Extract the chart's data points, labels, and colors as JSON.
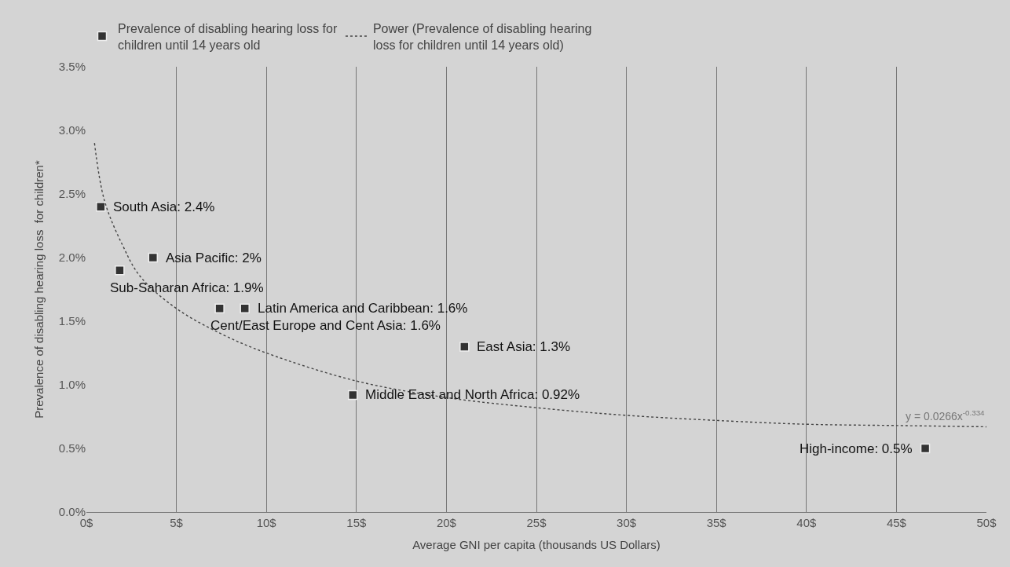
{
  "chart_data": {
    "type": "scatter",
    "xlabel": "Average GNI per capita (thousands US Dollars)",
    "ylabel": "Prevalence of disabling hearing loss  for children*",
    "xlim": [
      0,
      50
    ],
    "xticks": [
      {
        "value": 0,
        "label": "0$"
      },
      {
        "value": 5,
        "label": "5$"
      },
      {
        "value": 10,
        "label": "10$"
      },
      {
        "value": 15,
        "label": "15$"
      },
      {
        "value": 20,
        "label": "20$"
      },
      {
        "value": 25,
        "label": "25$"
      },
      {
        "value": 30,
        "label": "30$"
      },
      {
        "value": 35,
        "label": "35$"
      },
      {
        "value": 40,
        "label": "40$"
      },
      {
        "value": 45,
        "label": "45$"
      },
      {
        "value": 50,
        "label": "50$"
      }
    ],
    "ylim": [
      0,
      3.5
    ],
    "yticks": [
      {
        "value": 0,
        "label": "0.0%"
      },
      {
        "value": 0.5,
        "label": "0.5%"
      },
      {
        "value": 1,
        "label": "1.0%"
      },
      {
        "value": 1.5,
        "label": "1.5%"
      },
      {
        "value": 2,
        "label": "2.0%"
      },
      {
        "value": 2.5,
        "label": "2.5%"
      },
      {
        "value": 3,
        "label": "3.0%"
      },
      {
        "value": 3.5,
        "label": "3.5%"
      }
    ],
    "grid": "x",
    "legend": "top left",
    "series": [
      {
        "name": "Prevalence of disabling hearing loss for children until 14 years old",
        "marker": "square",
        "color": "#333333",
        "x": [
          0.8,
          1.85,
          3.7,
          7.4,
          8.8,
          21.0,
          14.8,
          46.6
        ],
        "values": [
          2.4,
          1.9,
          2.0,
          1.6,
          1.6,
          1.3,
          0.92,
          0.5
        ]
      },
      {
        "name": "Power (Prevalence of disabling hearing loss for children until 14 years old)",
        "type": "line",
        "line_style": "dotted",
        "marker": "none",
        "color": "#444444",
        "x": [
          0.45,
          1,
          2,
          3,
          5,
          7.5,
          10,
          15,
          20,
          25,
          30,
          35,
          40,
          45,
          50
        ],
        "values": [
          2.9,
          2.45,
          2.1,
          1.85,
          1.6,
          1.4,
          1.25,
          1.03,
          0.9,
          0.82,
          0.76,
          0.72,
          0.69,
          0.68,
          0.67
        ]
      }
    ],
    "annotations": [
      {
        "text": "South Asia: 2.4%",
        "x": 0.8,
        "y": 2.4
      },
      {
        "text": "Sub-Saharan Africa: 1.9%",
        "x": 1.85,
        "y": 1.9
      },
      {
        "text": "Asia Pacific: 2%",
        "x": 3.7,
        "y": 2.0
      },
      {
        "text": "Cent/East Europe and Cent Asia: 1.6%",
        "x": 7.4,
        "y": 1.6
      },
      {
        "text": "Latin America and Caribbean: 1.6%",
        "x": 8.8,
        "y": 1.6
      },
      {
        "text": "East Asia: 1.3%",
        "x": 21.0,
        "y": 1.3
      },
      {
        "text": "Middle East and North Africa: 0.92%",
        "x": 14.8,
        "y": 0.92
      },
      {
        "text": "High-income: 0.5%",
        "x": 46.6,
        "y": 0.5
      },
      {
        "text": "y = 0.0266x$^{-0.334}$",
        "x": 50,
        "y": 0.67
      }
    ]
  }
}
